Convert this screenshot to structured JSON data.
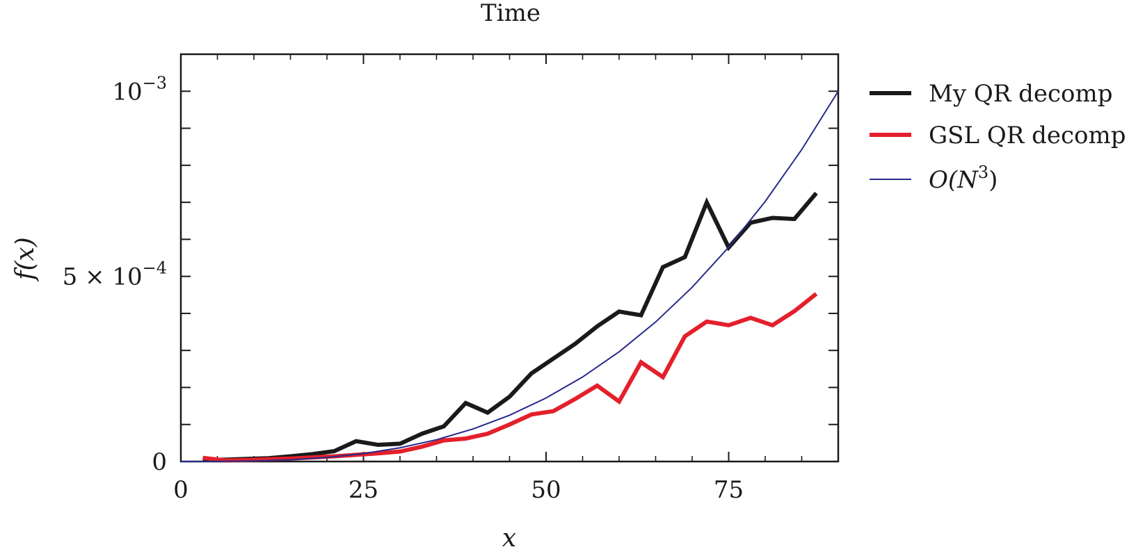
{
  "chart_data": {
    "type": "line",
    "title": "Time",
    "xlabel": "x",
    "ylabel": "f(x)",
    "xlim": [
      0,
      90
    ],
    "ylim": [
      0,
      0.0011
    ],
    "grid": false,
    "legend_position": "right, outside plot",
    "x_ticks": [
      {
        "value": 0,
        "label": "0"
      },
      {
        "value": 25,
        "label": "25"
      },
      {
        "value": 50,
        "label": "50"
      },
      {
        "value": 75,
        "label": "75"
      }
    ],
    "y_ticks": [
      {
        "value": 0,
        "label": "0",
        "exponent": ""
      },
      {
        "value": 0.0005,
        "label": "5 × 10",
        "exponent": "−4"
      },
      {
        "value": 0.001,
        "label": "10",
        "exponent": "−3"
      }
    ],
    "series": [
      {
        "name": "My QR decomp",
        "color": "#1a1a1a",
        "width": "thick",
        "x": [
          3,
          6,
          9,
          12,
          15,
          18,
          21,
          24,
          27,
          30,
          33,
          36,
          39,
          42,
          45,
          48,
          51,
          54,
          57,
          60,
          63,
          66,
          69,
          72,
          75,
          78,
          81,
          84,
          87
        ],
        "y": [
          4e-06,
          5e-06,
          7e-06,
          9e-06,
          1.4e-05,
          2e-05,
          2.8e-05,
          5.5e-05,
          4.5e-05,
          4.8e-05,
          7.5e-05,
          9.5e-05,
          0.000158,
          0.000132,
          0.000175,
          0.000238,
          0.000278,
          0.000318,
          0.000365,
          0.000405,
          0.000395,
          0.000525,
          0.000552,
          0.0007,
          0.000578,
          0.000645,
          0.000658,
          0.000655,
          0.000725
        ]
      },
      {
        "name": "GSL QR decomp",
        "color": "#e3202b",
        "width": "thick",
        "x": [
          3,
          6,
          9,
          12,
          15,
          18,
          21,
          24,
          27,
          30,
          33,
          36,
          39,
          42,
          45,
          48,
          51,
          54,
          57,
          60,
          63,
          66,
          69,
          72,
          75,
          78,
          81,
          84,
          87
        ],
        "y": [
          1e-05,
          3e-06,
          4e-06,
          6e-06,
          8e-06,
          1.1e-05,
          1.4e-05,
          1.8e-05,
          2.2e-05,
          2.7e-05,
          4e-05,
          5.7e-05,
          6.2e-05,
          7.5e-05,
          0.0001,
          0.000127,
          0.000136,
          0.000169,
          0.000205,
          0.000162,
          0.000268,
          0.000228,
          0.000338,
          0.000378,
          0.000368,
          0.000388,
          0.000368,
          0.000406,
          0.000453
        ]
      },
      {
        "name": "O(N³)",
        "legend_base": "O(N",
        "legend_sup": "3",
        "legend_tail": ")",
        "color": "#27298a",
        "width": "thin",
        "function": "y = 1e-3 * (x / 90)^3",
        "x": [
          0,
          5,
          10,
          15,
          20,
          25,
          30,
          35,
          40,
          45,
          50,
          55,
          60,
          65,
          70,
          75,
          80,
          85,
          90
        ],
        "y": [
          0,
          1.7e-07,
          1.37e-06,
          4.63e-06,
          1.097e-05,
          2.143e-05,
          3.704e-05,
          5.881e-05,
          8.779e-05,
          0.000125,
          0.00017147,
          0.00022822,
          0.0002963,
          0.00037672,
          0.00047051,
          0.0005787,
          0.00070233,
          0.0008424,
          0.001
        ]
      }
    ]
  }
}
